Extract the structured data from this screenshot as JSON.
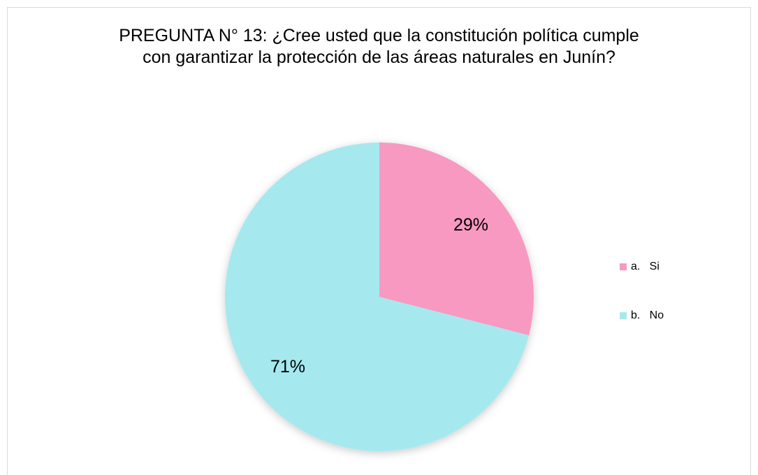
{
  "chart_data": {
    "type": "pie",
    "title": "PREGUNTA N°  13: ¿Cree usted que la constitución política cumple con garantizar la protección de las áreas naturales en Junín?",
    "categories": [
      "a.   Si",
      "b.   No"
    ],
    "values": [
      29,
      71
    ],
    "value_labels": [
      "29%",
      "71%"
    ],
    "colors": [
      "#f799c0",
      "#a5e9ef"
    ],
    "legend": "right"
  }
}
